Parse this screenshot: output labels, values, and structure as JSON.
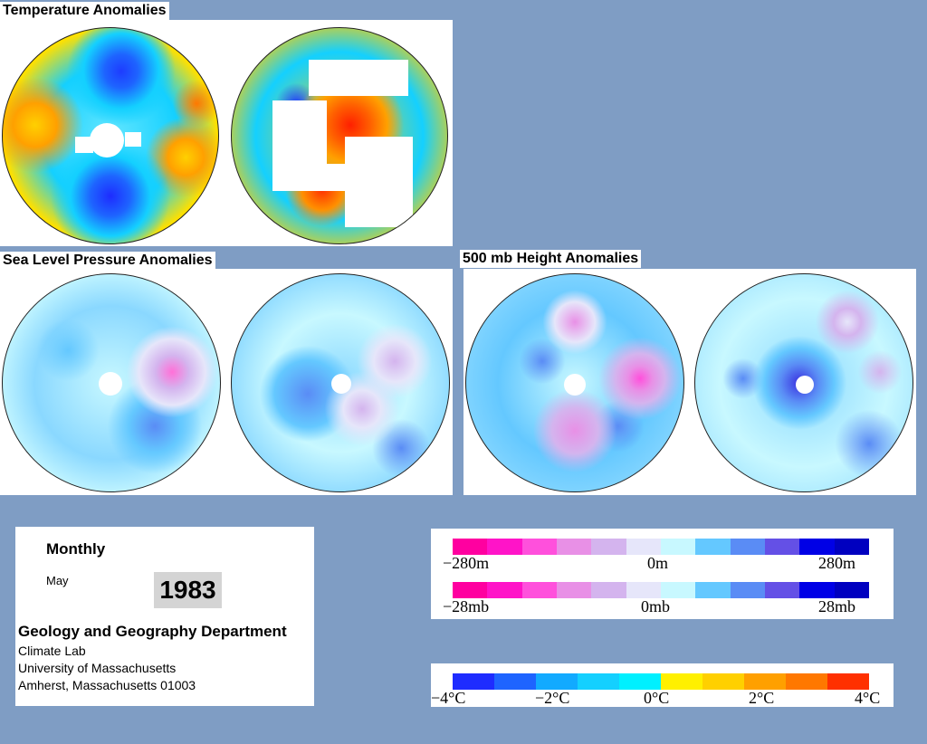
{
  "titles": {
    "temperature": "Temperature Anomalies",
    "slp": "Sea Level Pressure Anomalies",
    "height500": "500 mb Height Anomalies"
  },
  "info": {
    "period": "Monthly",
    "month": "May",
    "year": "1983",
    "department": "Geology and Geography Department",
    "lab": "Climate Lab",
    "university": "University of Massachusetts",
    "address": "Amherst, Massachusetts 01003"
  },
  "scales": {
    "height": {
      "min": "−280m",
      "mid": "0m",
      "max": "280m"
    },
    "pressure": {
      "min": "−28mb",
      "mid": "0mb",
      "max": "28mb"
    },
    "temperature": {
      "t1": "−4°C",
      "t2": "−2°C",
      "t3": "0°C",
      "t4": "2°C",
      "t5": "4°C"
    }
  },
  "colors": {
    "pink_scale": [
      "#ff00a0",
      "#ff14c8",
      "#ff50dc",
      "#e890e6",
      "#d4b4ee",
      "#e6e6fa",
      "#c8f8ff",
      "#64c8ff",
      "#5a8cf5",
      "#6450e6",
      "#0000e6",
      "#0000c0"
    ],
    "temp_scale": [
      "#1e2cff",
      "#1e64ff",
      "#12aaff",
      "#14d0ff",
      "#00f0ff",
      "#fff000",
      "#ffd000",
      "#ffa000",
      "#ff7800",
      "#ff3000"
    ]
  }
}
